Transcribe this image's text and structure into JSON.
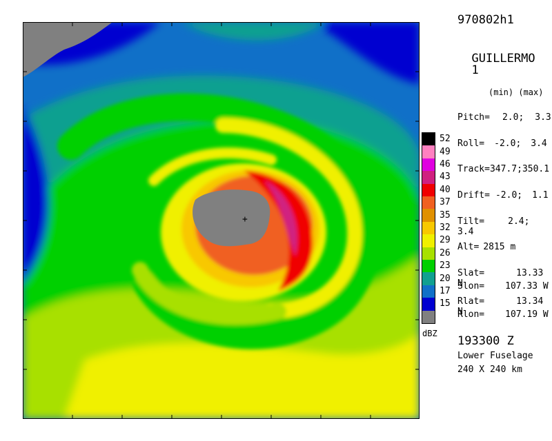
{
  "header": {
    "flight_id": "970802h1",
    "storm_name": "GUILLERMO",
    "pass_number": "1",
    "minmax_label": "(min) (max)"
  },
  "params": [
    {
      "label": "Pitch=",
      "value": "2.0;",
      "value2": "3.3"
    },
    {
      "label": "Roll=",
      "value": "-2.0;",
      "value2": "3.4"
    },
    {
      "label": "Track=",
      "value": "347.7;",
      "value2": "350.1"
    },
    {
      "label": "Drift=",
      "value": "-2.0;",
      "value2": "1.1"
    },
    {
      "label": "Tilt=",
      "value": "2.4;",
      "value2": "3.4"
    }
  ],
  "altitude": {
    "label": "Alt=",
    "value": "2815 m"
  },
  "positions": [
    {
      "label": "Slat=",
      "value": "13.33 N"
    },
    {
      "label": "Slon=",
      "value": "107.33 W"
    },
    {
      "label": "Rlat=",
      "value": "13.34 N"
    },
    {
      "label": "Rlon=",
      "value": "107.19 W"
    }
  ],
  "footer": {
    "time": "193300 Z",
    "antenna": "Lower Fuselage",
    "domain": "240 X 240 km"
  },
  "colorbar": {
    "unit": "dBZ",
    "levels": [
      {
        "label": "52",
        "color": "#000000"
      },
      {
        "label": "49",
        "color": "#ff80c0"
      },
      {
        "label": "46",
        "color": "#e000e0"
      },
      {
        "label": "43",
        "color": "#d02080"
      },
      {
        "label": "40",
        "color": "#f00000"
      },
      {
        "label": "37",
        "color": "#f06020"
      },
      {
        "label": "35",
        "color": "#e09000"
      },
      {
        "label": "32",
        "color": "#f8c800"
      },
      {
        "label": "29",
        "color": "#f0f000"
      },
      {
        "label": "26",
        "color": "#a8e000"
      },
      {
        "label": "23",
        "color": "#00d000"
      },
      {
        "label": "20",
        "color": "#10a090"
      },
      {
        "label": "17",
        "color": "#1070c8"
      },
      {
        "label": "15",
        "color": "#0000d0"
      },
      {
        "label": "",
        "color": "#808080"
      }
    ]
  },
  "map": {
    "center_marker": "+",
    "eye_color": "#808080",
    "land_color": "#808080"
  }
}
